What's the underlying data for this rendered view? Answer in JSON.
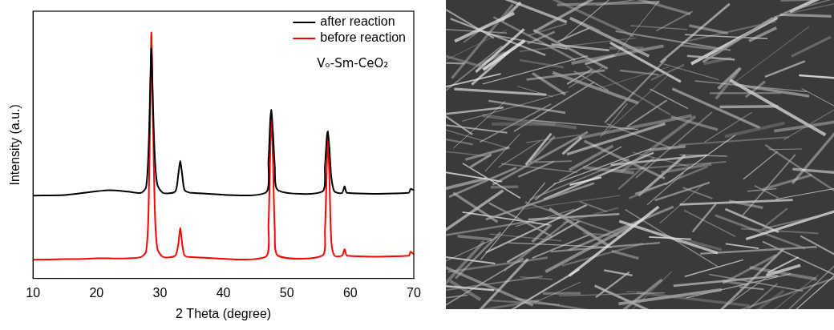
{
  "chart_data": {
    "type": "line",
    "x_label": "2 Theta (degree)",
    "y_label": "Intensity (a.u.)",
    "annotations": [
      "Vₒ-Sm-CeO₂"
    ],
    "x": [
      10,
      15,
      18,
      20,
      22,
      25,
      27,
      27.8,
      28.2,
      28.5,
      28.65,
      28.9,
      29.2,
      29.6,
      30.5,
      32.4,
      32.9,
      33.2,
      33.5,
      33.9,
      35,
      46.6,
      47.1,
      47.4,
      47.55,
      47.8,
      48.1,
      48.6,
      55.6,
      56.0,
      56.3,
      56.45,
      56.7,
      57.0,
      57.5,
      58.7,
      59.1,
      59.5,
      69.2,
      69.5,
      70
    ],
    "series": [
      {
        "name": "after reaction",
        "color": "#000000",
        "values": [
          31,
          31.2,
          32,
          32.6,
          33,
          32.5,
          32,
          34,
          48,
          75,
          86,
          65,
          45,
          35,
          32,
          32.5,
          39,
          44,
          39,
          33,
          32,
          32,
          44,
          60,
          63,
          55,
          42,
          33,
          32.5,
          42,
          53,
          55,
          49,
          38,
          32.5,
          32,
          34.5,
          32,
          32,
          33.5,
          33
        ]
      },
      {
        "name": "before reaction",
        "color": "#ff0000",
        "values": [
          7,
          7.2,
          7.3,
          7.5,
          7.5,
          7.5,
          8,
          10,
          25,
          70,
          92,
          60,
          25,
          11,
          8,
          8.5,
          13,
          19,
          13,
          8.5,
          8,
          8,
          20,
          50,
          61,
          45,
          18,
          8.5,
          8.5,
          18,
          42,
          53,
          38,
          14,
          8.5,
          8.5,
          11,
          8.5,
          8.5,
          10,
          9
        ]
      }
    ],
    "xlim": [
      10,
      70
    ],
    "xticks": [
      10,
      20,
      30,
      40,
      50,
      60,
      70
    ],
    "ylim": [
      0,
      100
    ],
    "yticks": [],
    "tick_labels": "x",
    "grid": false,
    "legend": "upper right",
    "line_style": "solid",
    "marker": "none"
  }
}
